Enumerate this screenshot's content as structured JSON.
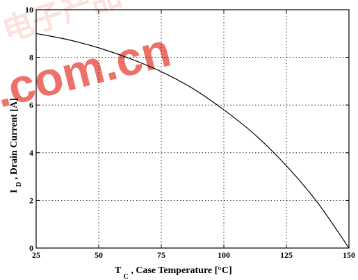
{
  "watermark": {
    "text_chinese": "电子产品",
    "text_domain": ".com.cn",
    "color": "#e8473b"
  },
  "chart_data": {
    "type": "line",
    "xlabel_main": "T",
    "xlabel_sub": "C",
    "xlabel_rest": ", Case Temperature",
    "xlabel_unit": "[°C]",
    "ylabel_main": "I",
    "ylabel_sub": "D",
    "ylabel_rest": ", Drain Current",
    "ylabel_unit": "[A]",
    "xlim": [
      25,
      150
    ],
    "ylim": [
      0,
      10
    ],
    "x_ticks": [
      25,
      50,
      75,
      100,
      125,
      150
    ],
    "y_ticks": [
      0,
      2,
      4,
      6,
      8,
      10
    ],
    "grid": true,
    "grid_style": "dotted",
    "series": [
      {
        "x": [
          25,
          37.5,
          50,
          62.5,
          75,
          87.5,
          100,
          112.5,
          125,
          137.5,
          150
        ],
        "y": [
          9.0,
          8.75,
          8.4,
          7.95,
          7.4,
          6.7,
          5.8,
          4.75,
          3.45,
          1.9,
          0.0
        ],
        "color": "#000000"
      }
    ]
  }
}
